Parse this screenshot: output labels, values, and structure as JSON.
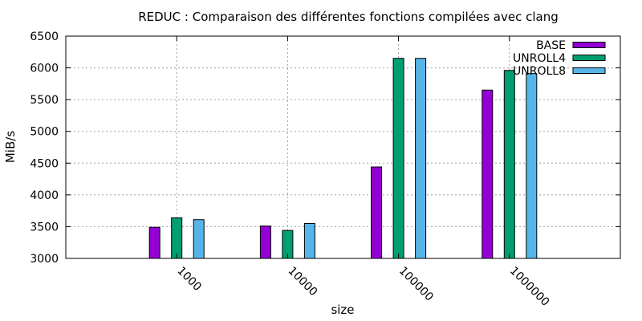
{
  "chart_data": {
    "type": "bar",
    "title": "REDUC : Comparaison des différentes fonctions compilées avec clang",
    "xlabel": "size",
    "ylabel": "MiB/s",
    "categories": [
      "1000",
      "10000",
      "100000",
      "1000000"
    ],
    "series": [
      {
        "name": "BASE",
        "color": "#9400d3",
        "values": [
          3490,
          3510,
          4440,
          5650
        ]
      },
      {
        "name": "UNROLL4",
        "color": "#009e73",
        "values": [
          3640,
          3440,
          6150,
          5960
        ]
      },
      {
        "name": "UNROLL8",
        "color": "#56b4e9",
        "values": [
          3610,
          3550,
          6150,
          5910
        ]
      }
    ],
    "ylim": [
      3000,
      6500
    ],
    "yticks": [
      3000,
      3500,
      4000,
      4500,
      5000,
      5500,
      6000,
      6500
    ],
    "grid": true,
    "legend_position": "top-right"
  }
}
